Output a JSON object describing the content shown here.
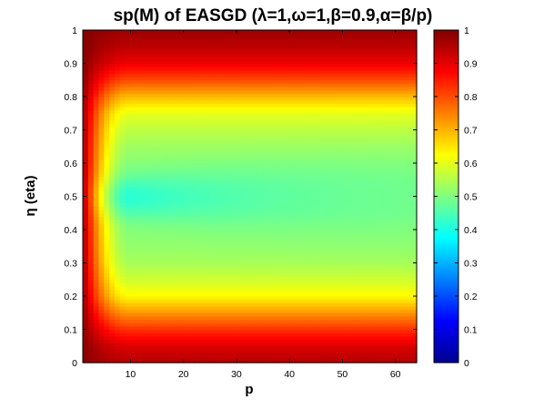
{
  "chart_data": {
    "type": "heatmap",
    "title": "sp(M) of EASGD (λ=1,ω=1,β=0.9,α=β/p)",
    "xlabel": "p",
    "ylabel": "η (eta)",
    "xlim": [
      1,
      64
    ],
    "ylim": [
      0,
      1
    ],
    "x_ticks": [
      "10",
      "20",
      "30",
      "40",
      "50",
      "60"
    ],
    "x_tick_values": [
      10,
      20,
      30,
      40,
      50,
      60
    ],
    "y_ticks": [
      "0",
      "0.1",
      "0.2",
      "0.3",
      "0.4",
      "0.5",
      "0.6",
      "0.7",
      "0.8",
      "0.9",
      "1"
    ],
    "y_tick_values": [
      0,
      0.1,
      0.2,
      0.3,
      0.4,
      0.5,
      0.6,
      0.7,
      0.8,
      0.9,
      1
    ],
    "colorbar": {
      "colormap": "jet",
      "range": [
        0,
        1
      ],
      "ticks": [
        "0",
        "0.1",
        "0.2",
        "0.3",
        "0.4",
        "0.5",
        "0.6",
        "0.7",
        "0.8",
        "0.9",
        "1"
      ],
      "tick_values": [
        0,
        0.1,
        0.2,
        0.3,
        0.4,
        0.5,
        0.6,
        0.7,
        0.8,
        0.9,
        1
      ]
    },
    "grid": false,
    "value_profile_by_eta": {
      "eta": [
        0,
        0.05,
        0.1,
        0.15,
        0.2,
        0.25,
        0.3,
        0.35,
        0.4,
        0.45,
        0.5,
        0.55,
        0.6,
        0.65,
        0.7,
        0.75,
        0.8,
        0.85,
        0.9,
        0.95,
        1.0
      ],
      "value_far_p": [
        0.95,
        0.91,
        0.83,
        0.73,
        0.63,
        0.58,
        0.54,
        0.52,
        0.51,
        0.5,
        0.5,
        0.5,
        0.51,
        0.53,
        0.56,
        0.6,
        0.69,
        0.8,
        0.89,
        0.94,
        0.97
      ]
    },
    "minimum": {
      "p": 10,
      "eta": 0.5,
      "value": 0.42
    }
  }
}
